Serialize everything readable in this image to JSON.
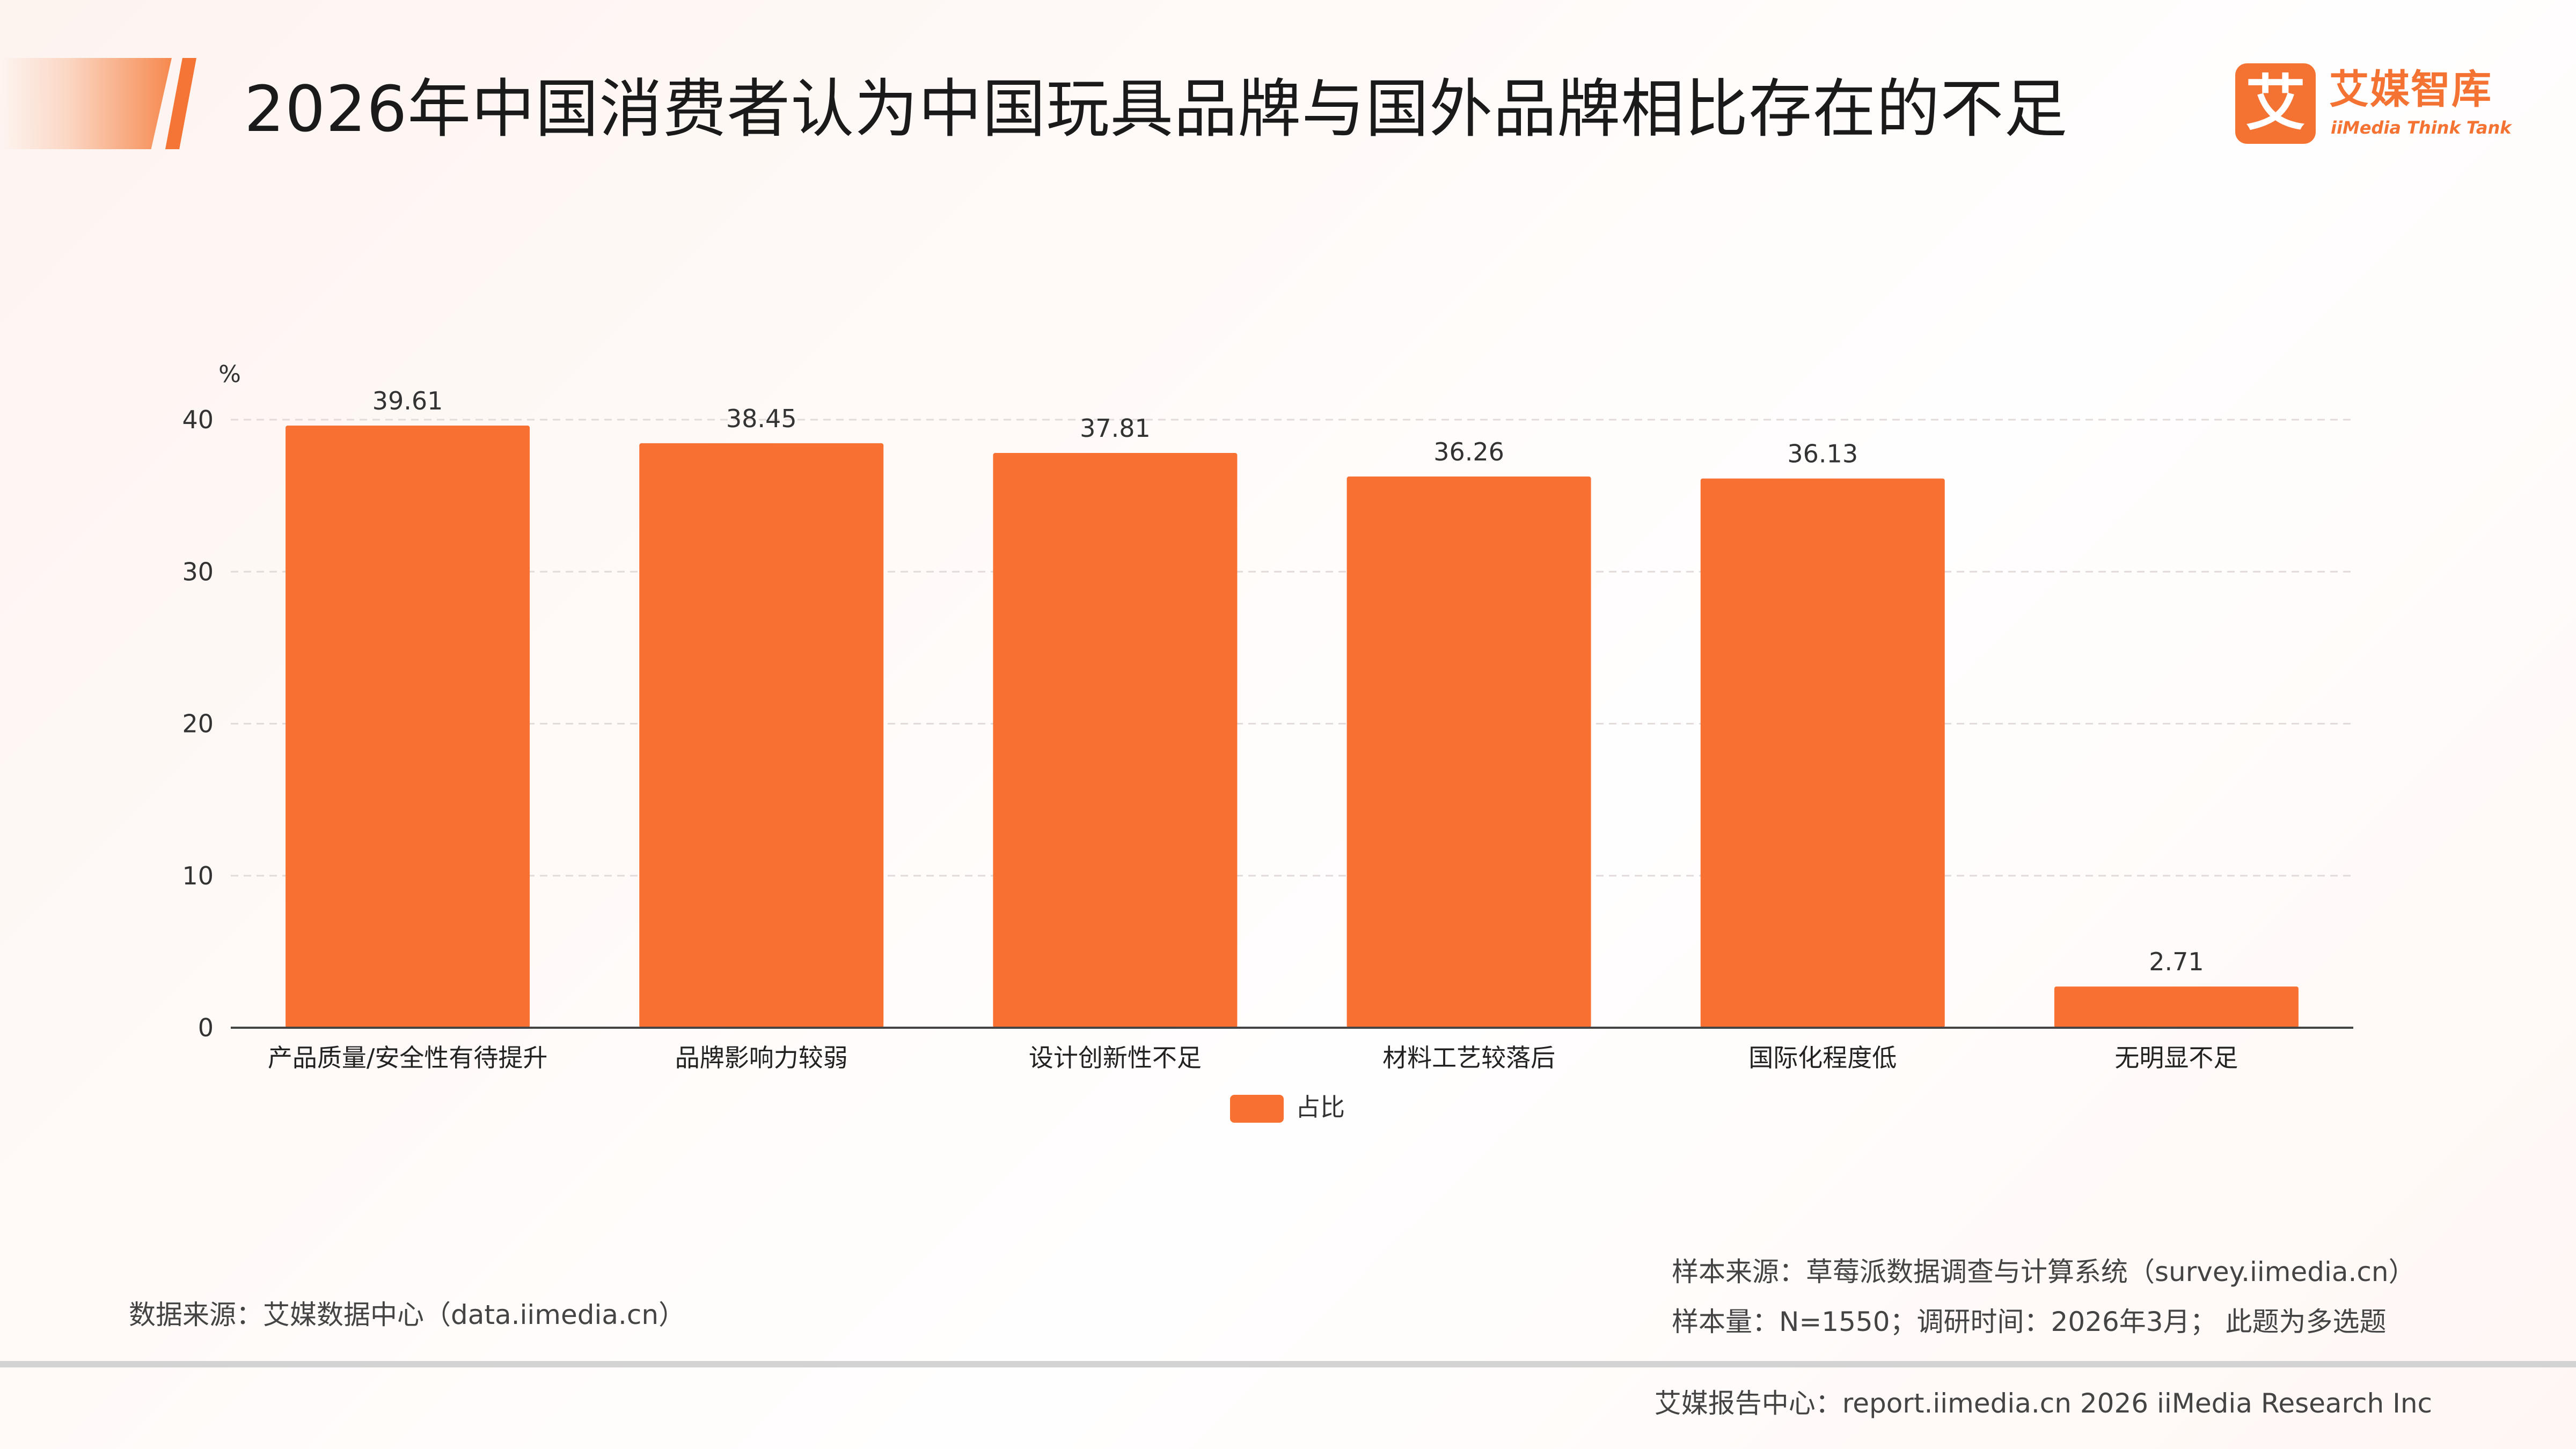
{
  "header": {
    "title": "2026年中国消费者认为中国玩具品牌与国外品牌相比存在的不足"
  },
  "logo": {
    "mark": "艾",
    "name_cn": "艾媒智库",
    "name_en": "iiMedia Think Tank"
  },
  "colors": {
    "accent": "#f57536",
    "bar": "#f97132"
  },
  "chart_data": {
    "type": "bar",
    "title": "",
    "ylabel": "%",
    "xlabel": "",
    "ylim": [
      0,
      40
    ],
    "yticks": [
      0,
      10,
      20,
      30,
      40
    ],
    "grid": true,
    "legend_position": "bottom",
    "categories": [
      "产品质量/安全性有待提升",
      "品牌影响力较弱",
      "设计创新性不足",
      "材料工艺较落后",
      "国际化程度低",
      "无明显不足"
    ],
    "series": [
      {
        "name": "占比",
        "values": [
          39.61,
          38.45,
          37.81,
          36.26,
          36.13,
          2.71
        ]
      }
    ]
  },
  "legend": {
    "label": "占比"
  },
  "footnotes": {
    "data_source": "数据来源：艾媒数据中心（data.iimedia.cn）",
    "sample_source": "样本来源：草莓派数据调查与计算系统（survey.iimedia.cn）",
    "sample_size": "样本量：N=1550；调研时间：2026年3月；   此题为多选题"
  },
  "footer": {
    "text": "艾媒报告中心：report.iimedia.cn   2026 iiMedia Research Inc"
  }
}
